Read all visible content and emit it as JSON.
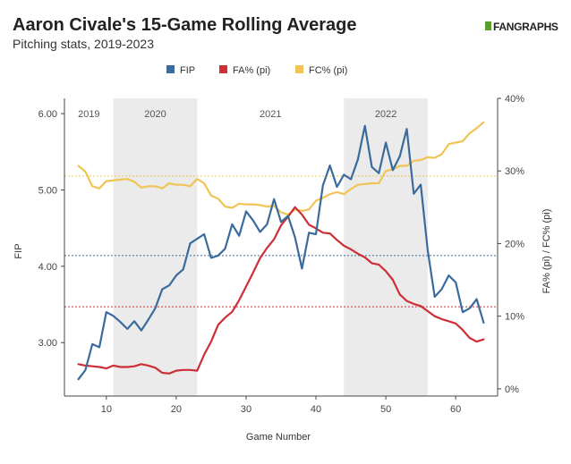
{
  "header": {
    "title": "Aaron Civale's 15-Game Rolling Average",
    "subtitle": "Pitching stats, 2019-2023",
    "logo": "FANGRAPHS"
  },
  "colors": {
    "fip": "#3a6b9c",
    "fa": "#cc2f37",
    "fc": "#f1c555",
    "band": "#ebebeb"
  },
  "chart_data": {
    "type": "line",
    "xlabel": "Game Number",
    "ylabel": "FIP",
    "y2label": "FA% (pi) / FC% (pi)",
    "xlim": [
      4,
      66
    ],
    "ylim": [
      2.3,
      6.2
    ],
    "y2lim": [
      -0.01,
      0.4
    ],
    "x_ticks": [
      10,
      20,
      30,
      40,
      50,
      60
    ],
    "y_ticks": [
      "3.00",
      "4.00",
      "5.00",
      "6.00"
    ],
    "y2_ticks": [
      "0%",
      "10%",
      "20%",
      "30%",
      "40%"
    ],
    "legend": {
      "placement": "top",
      "entries": [
        "FIP",
        "FA% (pi)",
        "FC% (pi)"
      ]
    },
    "seasons": [
      {
        "label": "2019",
        "start": 4,
        "end": 11,
        "shaded": false
      },
      {
        "label": "2020",
        "start": 11,
        "end": 23,
        "shaded": true
      },
      {
        "label": "2021",
        "start": 23,
        "end": 44,
        "shaded": false
      },
      {
        "label": "2022",
        "start": 44,
        "end": 56,
        "shaded": true
      }
    ],
    "reference_lines": {
      "fip": 4.14,
      "fa": 0.113,
      "fc": 0.293
    },
    "x": [
      6,
      7,
      8,
      9,
      10,
      11,
      12,
      13,
      14,
      15,
      16,
      17,
      18,
      19,
      20,
      21,
      22,
      23,
      24,
      25,
      26,
      27,
      28,
      29,
      30,
      31,
      32,
      33,
      34,
      35,
      36,
      37,
      38,
      39,
      40,
      41,
      42,
      43,
      44,
      45,
      46,
      47,
      48,
      49,
      50,
      51,
      52,
      53,
      54,
      55,
      56,
      57,
      58,
      59,
      60,
      61,
      62,
      63,
      64
    ],
    "series": [
      {
        "name": "FIP",
        "axis": "left",
        "values": [
          2.52,
          2.64,
          2.98,
          2.94,
          3.4,
          3.35,
          3.27,
          3.18,
          3.28,
          3.16,
          3.3,
          3.45,
          3.7,
          3.75,
          3.88,
          3.96,
          4.3,
          4.36,
          4.42,
          4.11,
          4.14,
          4.23,
          4.55,
          4.4,
          4.72,
          4.6,
          4.45,
          4.55,
          4.88,
          4.58,
          4.66,
          4.38,
          3.97,
          4.44,
          4.42,
          5.06,
          5.32,
          5.04,
          5.2,
          5.14,
          5.4,
          5.84,
          5.3,
          5.22,
          5.62,
          5.26,
          5.44,
          5.8,
          4.95,
          5.07,
          4.21,
          3.6,
          3.7,
          3.88,
          3.79,
          3.4,
          3.45,
          3.57,
          3.26
        ]
      },
      {
        "name": "FA% (pi)",
        "axis": "right",
        "values": [
          0.034,
          0.032,
          0.031,
          0.03,
          0.028,
          0.032,
          0.03,
          0.03,
          0.031,
          0.034,
          0.032,
          0.029,
          0.022,
          0.021,
          0.025,
          0.026,
          0.026,
          0.025,
          0.047,
          0.065,
          0.088,
          0.098,
          0.106,
          0.122,
          0.141,
          0.16,
          0.18,
          0.194,
          0.206,
          0.225,
          0.237,
          0.25,
          0.24,
          0.226,
          0.221,
          0.215,
          0.214,
          0.205,
          0.197,
          0.192,
          0.186,
          0.181,
          0.173,
          0.171,
          0.162,
          0.15,
          0.13,
          0.121,
          0.117,
          0.114,
          0.107,
          0.1,
          0.096,
          0.093,
          0.09,
          0.081,
          0.07,
          0.065,
          0.068
        ]
      },
      {
        "name": "FC% (pi)",
        "axis": "right",
        "values": [
          0.307,
          0.299,
          0.279,
          0.276,
          0.286,
          0.287,
          0.288,
          0.289,
          0.285,
          0.277,
          0.279,
          0.279,
          0.276,
          0.283,
          0.281,
          0.281,
          0.279,
          0.289,
          0.283,
          0.266,
          0.262,
          0.251,
          0.249,
          0.255,
          0.254,
          0.254,
          0.253,
          0.251,
          0.252,
          0.243,
          0.24,
          0.247,
          0.245,
          0.247,
          0.259,
          0.263,
          0.268,
          0.271,
          0.268,
          0.275,
          0.281,
          0.282,
          0.283,
          0.283,
          0.3,
          0.302,
          0.307,
          0.307,
          0.314,
          0.315,
          0.319,
          0.318,
          0.323,
          0.337,
          0.339,
          0.341,
          0.352,
          0.359,
          0.367
        ]
      }
    ]
  }
}
